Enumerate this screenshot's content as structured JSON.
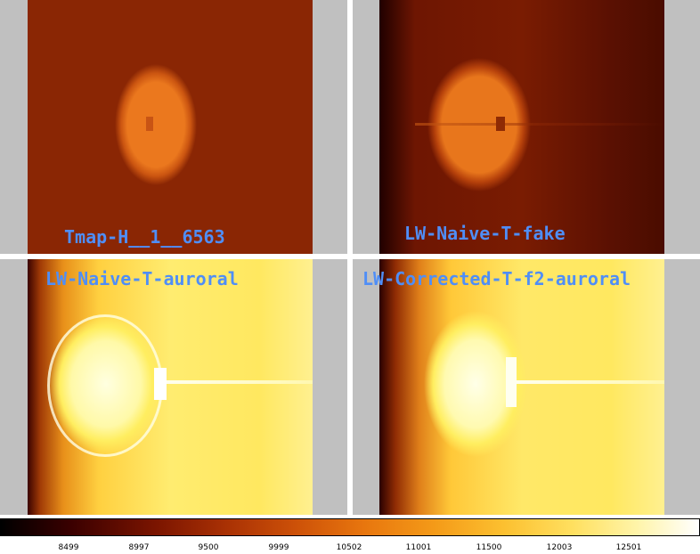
{
  "panels": [
    {
      "label": "Tmap-H__1__6563"
    },
    {
      "label": "LW-Naive-T-fake"
    },
    {
      "label": "LW-Naive-T-auroral"
    },
    {
      "label": "LW-Corrected-T-f2-auroral"
    }
  ],
  "colorbar": {
    "ticks": [
      "8499",
      "8997",
      "9500",
      "9999",
      "10502",
      "11001",
      "11500",
      "12003",
      "12501"
    ],
    "colormap": "heat",
    "colors": {
      "low": "#000000",
      "mid": "#e8760e",
      "high": "#ffffff"
    }
  },
  "colors": {
    "label": "#4f8ef7",
    "background": "#c0c0c0"
  }
}
